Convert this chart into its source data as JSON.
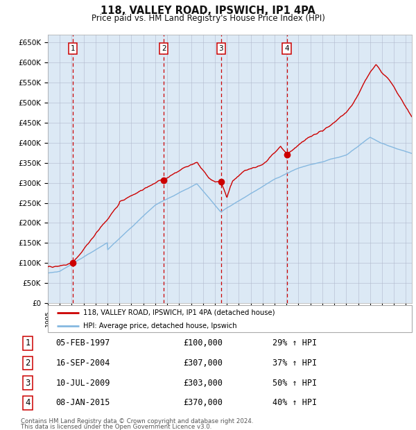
{
  "title": "118, VALLEY ROAD, IPSWICH, IP1 4PA",
  "subtitle": "Price paid vs. HM Land Registry's House Price Index (HPI)",
  "background_color": "#ffffff",
  "plot_bg_color": "#dce9f5",
  "hpi_line_color": "#85b8e0",
  "price_line_color": "#cc0000",
  "sale_marker_color": "#cc0000",
  "dashed_line_color": "#cc0000",
  "sales": [
    {
      "date_x": 1997.09,
      "price": 100000,
      "label": "1",
      "date_str": "05-FEB-1997",
      "hpi_pct": "29%"
    },
    {
      "date_x": 2004.71,
      "price": 307000,
      "label": "2",
      "date_str": "16-SEP-2004",
      "hpi_pct": "37%"
    },
    {
      "date_x": 2009.52,
      "price": 303000,
      "label": "3",
      "date_str": "10-JUL-2009",
      "hpi_pct": "50%"
    },
    {
      "date_x": 2015.02,
      "price": 370000,
      "label": "4",
      "date_str": "08-JAN-2015",
      "hpi_pct": "40%"
    }
  ],
  "ylim": [
    0,
    670000
  ],
  "xlim": [
    1995.0,
    2025.5
  ],
  "legend_label_price": "118, VALLEY ROAD, IPSWICH, IP1 4PA (detached house)",
  "legend_label_hpi": "HPI: Average price, detached house, Ipswich",
  "footer_line1": "Contains HM Land Registry data © Crown copyright and database right 2024.",
  "footer_line2": "This data is licensed under the Open Government Licence v3.0.",
  "ytick_labels": [
    "£0",
    "£50K",
    "£100K",
    "£150K",
    "£200K",
    "£250K",
    "£300K",
    "£350K",
    "£400K",
    "£450K",
    "£500K",
    "£550K",
    "£600K",
    "£650K"
  ],
  "ytick_values": [
    0,
    50000,
    100000,
    150000,
    200000,
    250000,
    300000,
    350000,
    400000,
    450000,
    500000,
    550000,
    600000,
    650000
  ]
}
